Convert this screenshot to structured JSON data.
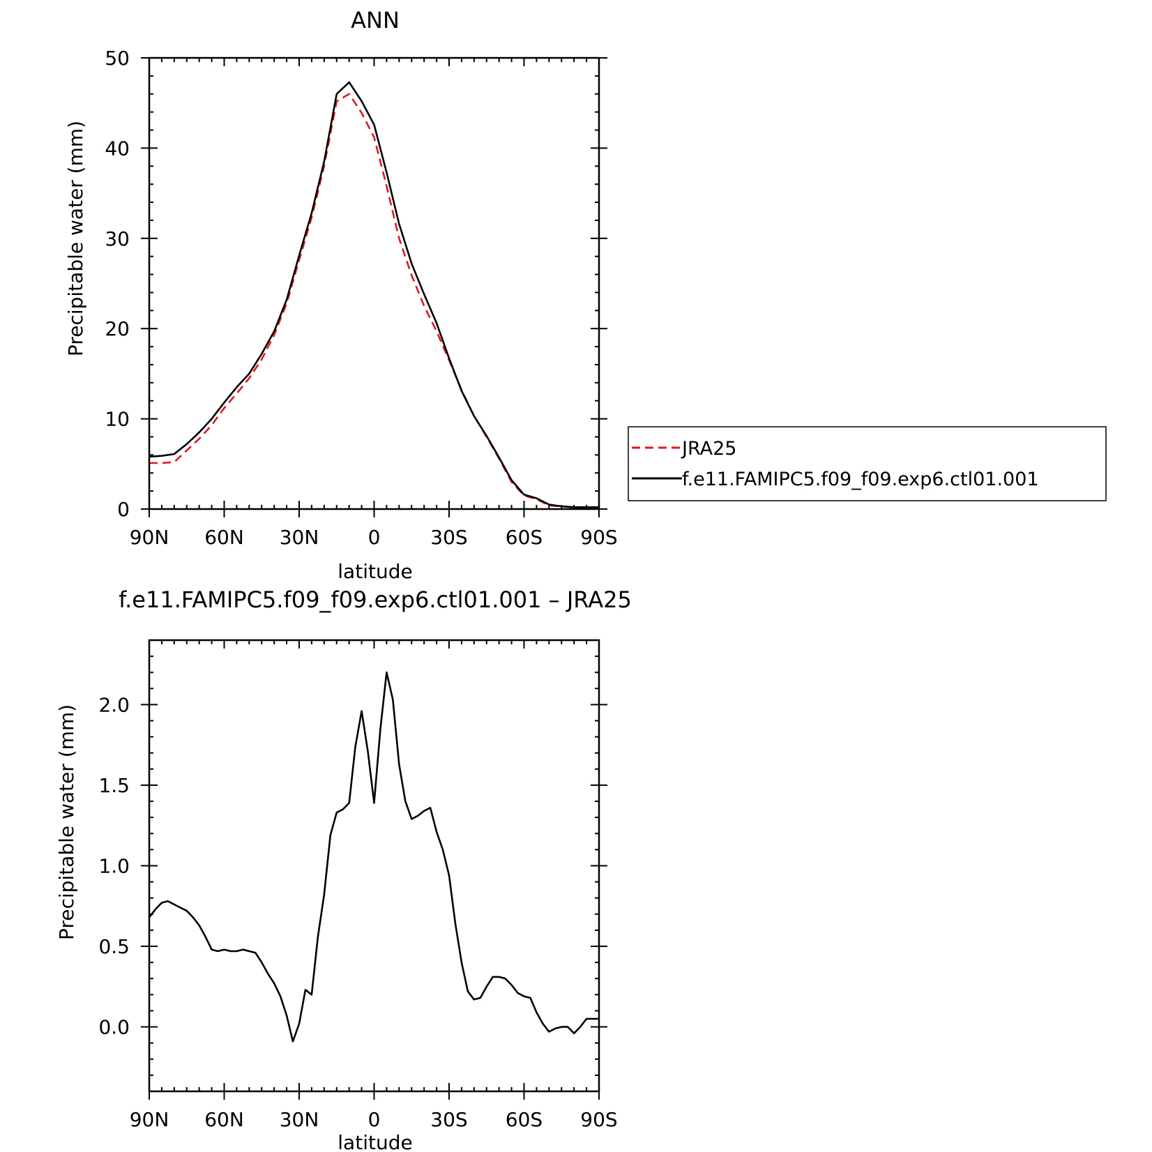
{
  "chart_data": [
    {
      "type": "line",
      "title": "ANN",
      "xlabel": "latitude",
      "ylabel": "Precipitable water (mm)",
      "xlim": [
        90,
        -90
      ],
      "ylim": [
        0,
        50
      ],
      "x_ticks": [
        {
          "value": 90,
          "label": "90N"
        },
        {
          "value": 60,
          "label": "60N"
        },
        {
          "value": 30,
          "label": "30N"
        },
        {
          "value": 0,
          "label": "0"
        },
        {
          "value": -30,
          "label": "30S"
        },
        {
          "value": -60,
          "label": "60S"
        },
        {
          "value": -90,
          "label": "90S"
        }
      ],
      "y_ticks": [
        {
          "value": 0,
          "label": "0"
        },
        {
          "value": 10,
          "label": "10"
        },
        {
          "value": 20,
          "label": "20"
        },
        {
          "value": 30,
          "label": "30"
        },
        {
          "value": 40,
          "label": "40"
        },
        {
          "value": 50,
          "label": "50"
        }
      ],
      "legend": {
        "position": "right",
        "entries": [
          "JRA25",
          "f.e11.FAMIPC5.f09_f09.exp6.ctl01.001"
        ]
      },
      "series": [
        {
          "name": "JRA25",
          "color": "#e0191e",
          "dash": true,
          "x": [
            90,
            85,
            80,
            75,
            70,
            65,
            60,
            55,
            50,
            45,
            40,
            35,
            30,
            25,
            20,
            15,
            10,
            5,
            0,
            -5,
            -10,
            -15,
            -20,
            -25,
            -30,
            -35,
            -40,
            -45,
            -50,
            -55,
            -60,
            -65,
            -70,
            -75,
            -80,
            -85,
            -90
          ],
          "y": [
            5.1,
            5.1,
            5.2,
            6.5,
            7.8,
            9.3,
            11.2,
            12.8,
            14.5,
            16.6,
            19.3,
            22.8,
            27.6,
            32.3,
            38.0,
            45.2,
            46.0,
            43.9,
            41.2,
            35.8,
            30.0,
            25.9,
            22.5,
            19.7,
            16.5,
            13.2,
            10.3,
            8.0,
            5.6,
            3.0,
            1.5,
            1.1,
            0.4,
            0.3,
            0.2,
            0.2,
            0.2
          ]
        },
        {
          "name": "f.e11.FAMIPC5.f09_f09.exp6.ctl01.001",
          "color": "#000000",
          "dash": false,
          "x": [
            90,
            85,
            80,
            75,
            70,
            65,
            60,
            55,
            50,
            45,
            40,
            35,
            30,
            25,
            20,
            15,
            10,
            5,
            0,
            -5,
            -10,
            -15,
            -20,
            -25,
            -30,
            -35,
            -40,
            -45,
            -50,
            -55,
            -60,
            -65,
            -70,
            -75,
            -80,
            -85,
            -90
          ],
          "y": [
            5.8,
            5.9,
            6.1,
            7.2,
            8.5,
            10.0,
            11.8,
            13.5,
            15.0,
            17.2,
            19.7,
            23.2,
            28.1,
            32.8,
            38.5,
            46.0,
            47.3,
            45.2,
            42.6,
            37.3,
            31.6,
            27.2,
            23.8,
            20.6,
            16.7,
            13.1,
            10.3,
            8.1,
            5.7,
            3.2,
            1.6,
            1.2,
            0.5,
            0.3,
            0.2,
            0.2,
            0.2
          ]
        }
      ]
    },
    {
      "type": "line",
      "title": "f.e11.FAMIPC5.f09_f09.exp6.ctl01.001 – JRA25",
      "xlabel": "latitude",
      "ylabel": "Precipitable water (mm)",
      "xlim": [
        90,
        -90
      ],
      "ylim": [
        -0.4,
        2.4
      ],
      "x_ticks": [
        {
          "value": 90,
          "label": "90N"
        },
        {
          "value": 60,
          "label": "60N"
        },
        {
          "value": 30,
          "label": "30N"
        },
        {
          "value": 0,
          "label": "0"
        },
        {
          "value": -30,
          "label": "30S"
        },
        {
          "value": -60,
          "label": "60S"
        },
        {
          "value": -90,
          "label": "90S"
        }
      ],
      "y_ticks": [
        {
          "value": 0.0,
          "label": "0.0"
        },
        {
          "value": 0.5,
          "label": "0.5"
        },
        {
          "value": 1.0,
          "label": "1.0"
        },
        {
          "value": 1.5,
          "label": "1.5"
        },
        {
          "value": 2.0,
          "label": "2.0"
        }
      ],
      "series": [
        {
          "color": "#000000",
          "dash": false,
          "x": [
            90,
            87.5,
            85,
            82.5,
            80,
            77.5,
            75,
            72.5,
            70,
            67.5,
            65,
            62.5,
            60,
            57.5,
            55,
            52.5,
            50,
            47.5,
            45,
            42.5,
            40,
            37.5,
            35,
            32.5,
            30,
            27.5,
            25,
            22.5,
            20,
            17.5,
            15,
            12.5,
            10,
            7.5,
            5,
            2.5,
            0,
            -2.5,
            -5,
            -7.5,
            -10,
            -12.5,
            -15,
            -17.5,
            -20,
            -22.5,
            -25,
            -27.5,
            -30,
            -32.5,
            -35,
            -37.5,
            -40,
            -42.5,
            -45,
            -47.5,
            -50,
            -52.5,
            -55,
            -57.5,
            -60,
            -62.5,
            -65,
            -67.5,
            -70,
            -72.5,
            -75,
            -77.5,
            -80,
            -82.5,
            -85,
            -87.5,
            -90
          ],
          "y": [
            0.68,
            0.73,
            0.77,
            0.78,
            0.76,
            0.74,
            0.72,
            0.68,
            0.63,
            0.56,
            0.48,
            0.47,
            0.48,
            0.47,
            0.47,
            0.48,
            0.47,
            0.46,
            0.4,
            0.33,
            0.27,
            0.19,
            0.07,
            -0.09,
            0.02,
            0.23,
            0.2,
            0.56,
            0.82,
            1.19,
            1.33,
            1.35,
            1.39,
            1.74,
            1.96,
            1.71,
            1.39,
            1.85,
            2.2,
            2.03,
            1.63,
            1.4,
            1.29,
            1.31,
            1.34,
            1.36,
            1.21,
            1.1,
            0.94,
            0.64,
            0.4,
            0.22,
            0.17,
            0.18,
            0.25,
            0.31,
            0.31,
            0.3,
            0.26,
            0.21,
            0.19,
            0.18,
            0.09,
            0.02,
            -0.03,
            -0.01,
            0.0,
            0.0,
            -0.04,
            0.0,
            0.05,
            0.05,
            0.05
          ]
        }
      ]
    }
  ]
}
